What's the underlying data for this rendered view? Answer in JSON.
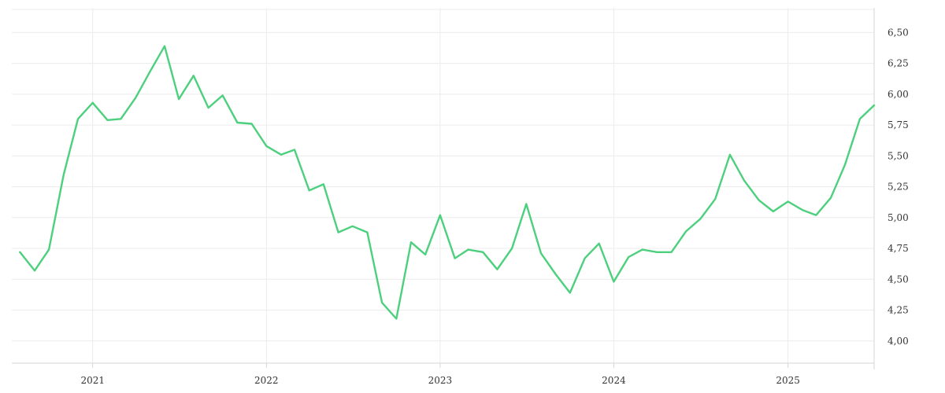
{
  "chart_data": {
    "type": "line",
    "title": "",
    "xlabel": "",
    "ylabel": "",
    "x_tick_labels": [
      "2021",
      "2022",
      "2023",
      "2024",
      "2025"
    ],
    "y_tick_labels": [
      "4,00",
      "4,25",
      "4,50",
      "4,75",
      "5,00",
      "5,25",
      "5,50",
      "5,75",
      "6,00",
      "6,25",
      "6,50"
    ],
    "y_ticks": [
      4.0,
      4.25,
      4.5,
      4.75,
      5.0,
      5.25,
      5.5,
      5.75,
      6.0,
      6.25,
      6.5
    ],
    "ylim": [
      3.82,
      6.7
    ],
    "xlim": [
      "2020-07-15",
      "2025-07-01"
    ],
    "grid": true,
    "y_axis_position": "right",
    "colors": {
      "series": "#4cd07d"
    },
    "series": [
      {
        "x": [
          "2020-08-01",
          "2020-09-01",
          "2020-10-01",
          "2020-11-01",
          "2020-12-01",
          "2021-01-01",
          "2021-02-01",
          "2021-03-01",
          "2021-04-01",
          "2021-05-01",
          "2021-06-01",
          "2021-07-01",
          "2021-08-01",
          "2021-09-01",
          "2021-10-01",
          "2021-11-01",
          "2021-12-01",
          "2022-01-01",
          "2022-02-01",
          "2022-03-01",
          "2022-04-01",
          "2022-05-01",
          "2022-06-01",
          "2022-07-01",
          "2022-08-01",
          "2022-09-01",
          "2022-10-01",
          "2022-11-01",
          "2022-12-01",
          "2023-01-01",
          "2023-02-01",
          "2023-03-01",
          "2023-04-01",
          "2023-05-01",
          "2023-06-01",
          "2023-07-01",
          "2023-08-01",
          "2023-09-01",
          "2023-10-01",
          "2023-11-01",
          "2023-12-01",
          "2024-01-01",
          "2024-02-01",
          "2024-03-01",
          "2024-04-01",
          "2024-05-01",
          "2024-06-01",
          "2024-07-01",
          "2024-08-01",
          "2024-09-01",
          "2024-10-01",
          "2024-11-01",
          "2024-12-01",
          "2025-01-01",
          "2025-02-01",
          "2025-03-01",
          "2025-04-01",
          "2025-05-01",
          "2025-06-01",
          "2025-07-01"
        ],
        "values": [
          4.72,
          4.57,
          4.74,
          5.35,
          5.8,
          5.93,
          5.79,
          5.8,
          5.97,
          6.18,
          6.39,
          5.96,
          6.15,
          5.89,
          5.99,
          5.77,
          5.76,
          5.58,
          5.51,
          5.55,
          5.22,
          5.27,
          4.88,
          4.93,
          4.88,
          4.31,
          4.18,
          4.8,
          4.7,
          5.02,
          4.67,
          4.74,
          4.72,
          4.58,
          4.75,
          5.11,
          4.71,
          4.54,
          4.39,
          4.67,
          4.79,
          4.48,
          4.68,
          4.74,
          4.72,
          4.72,
          4.89,
          4.99,
          5.15,
          5.51,
          5.3,
          5.14,
          5.05,
          5.13,
          5.06,
          5.02,
          5.16,
          5.43,
          5.8,
          5.91
        ]
      }
    ]
  }
}
